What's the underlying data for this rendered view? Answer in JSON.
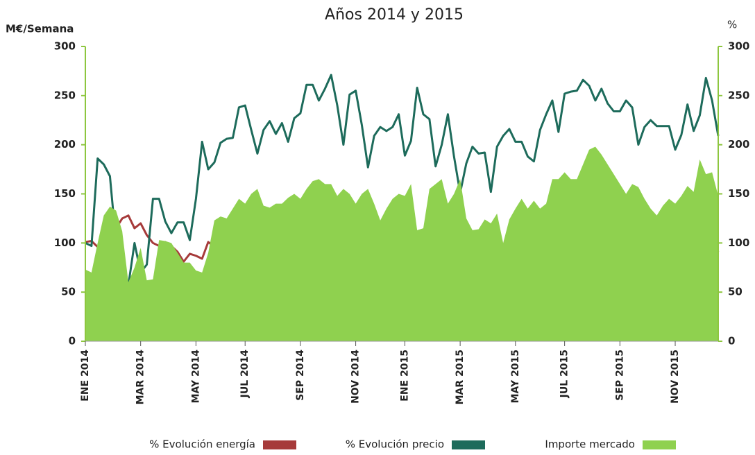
{
  "chart_data": {
    "type": "line",
    "title": "Años 2014 y 2015",
    "ylabel": "M€/Semana",
    "y2label": "%",
    "categories": [
      "ENE 2014",
      null,
      null,
      null,
      null,
      null,
      null,
      null,
      null,
      "MAR 2014",
      null,
      null,
      null,
      null,
      null,
      null,
      null,
      null,
      "MAY 2014",
      null,
      null,
      null,
      null,
      null,
      null,
      null,
      "JUL 2014",
      null,
      null,
      null,
      null,
      null,
      null,
      null,
      null,
      "SEP 2014",
      null,
      null,
      null,
      null,
      null,
      null,
      null,
      null,
      "NOV 2014",
      null,
      null,
      null,
      null,
      null,
      null,
      null,
      "ENE 2015",
      null,
      null,
      null,
      null,
      null,
      null,
      null,
      null,
      "MAR 2015",
      null,
      null,
      null,
      null,
      null,
      null,
      null,
      null,
      "MAY 2015",
      null,
      null,
      null,
      null,
      null,
      null,
      null,
      "JUL 2015",
      null,
      null,
      null,
      null,
      null,
      null,
      null,
      null,
      "SEP 2015",
      null,
      null,
      null,
      null,
      null,
      null,
      null,
      null,
      "NOV 2015",
      null,
      null,
      null,
      null,
      null,
      null,
      null
    ],
    "series": [
      {
        "name": "% Evolución energía",
        "color": "#a63a3a",
        "axis": "y2",
        "values": [
          101,
          102,
          96,
          107,
          108,
          115,
          125,
          128,
          115,
          120,
          108,
          100,
          97,
          101,
          97,
          91,
          81,
          89,
          87,
          84,
          101,
          96,
          95,
          98,
          95,
          89,
          91,
          89,
          100,
          91,
          88,
          97,
          94,
          98,
          96,
          99,
          88,
          84,
          91,
          79,
          79,
          86,
          95,
          84,
          85,
          92,
          95,
          89,
          93,
          98,
          95,
          96,
          82,
          80,
          86,
          97,
          102,
          105,
          103,
          95,
          94,
          104,
          88,
          87,
          86,
          92,
          85,
          88,
          91,
          93,
          92,
          99,
          102,
          107,
          107,
          100,
          98,
          107,
          92,
          99,
          107,
          104,
          102,
          102,
          93,
          92,
          89,
          95,
          90,
          87,
          94,
          82,
          86,
          94,
          89,
          91,
          97,
          98,
          92,
          97,
          104,
          95,
          105,
          91
        ]
      },
      {
        "name": "% Evolución precio",
        "color": "#1d6b5b",
        "axis": "y2",
        "values": [
          100,
          97,
          186,
          180,
          168,
          100,
          46,
          57,
          100,
          70,
          78,
          145,
          145,
          122,
          110,
          121,
          121,
          103,
          145,
          203,
          175,
          182,
          202,
          206,
          207,
          238,
          240,
          215,
          191,
          215,
          224,
          211,
          222,
          203,
          227,
          232,
          261,
          261,
          245,
          257,
          271,
          240,
          200,
          251,
          255,
          220,
          177,
          209,
          218,
          214,
          218,
          231,
          189,
          204,
          258,
          231,
          226,
          178,
          200,
          231,
          188,
          151,
          181,
          198,
          191,
          192,
          152,
          198,
          209,
          216,
          203,
          203,
          188,
          183,
          215,
          231,
          245,
          213,
          252,
          254,
          255,
          266,
          260,
          245,
          257,
          242,
          234,
          234,
          245,
          238,
          200,
          218,
          225,
          219,
          219,
          219,
          195,
          210,
          241,
          214,
          230,
          268,
          245,
          209
        ]
      },
      {
        "name": "Importe mercado",
        "color": "#8fd14f",
        "area": true,
        "values": [
          73,
          70,
          100,
          128,
          137,
          133,
          112,
          60,
          75,
          95,
          62,
          63,
          103,
          102,
          100,
          90,
          80,
          80,
          72,
          70,
          90,
          123,
          127,
          125,
          135,
          145,
          140,
          150,
          155,
          138,
          136,
          140,
          140,
          146,
          150,
          145,
          155,
          163,
          165,
          160,
          160,
          148,
          155,
          150,
          140,
          150,
          155,
          140,
          123,
          135,
          145,
          150,
          148,
          160,
          113,
          115,
          155,
          160,
          165,
          140,
          150,
          165,
          125,
          113,
          114,
          124,
          120,
          130,
          100,
          124,
          135,
          145,
          135,
          143,
          135,
          140,
          165,
          165,
          172,
          165,
          165,
          180,
          195,
          198,
          190,
          180,
          170,
          160,
          150,
          160,
          157,
          145,
          135,
          128,
          138,
          145,
          140,
          148,
          158,
          152,
          185,
          170,
          172,
          148
        ]
      }
    ],
    "ylim": [
      0,
      300
    ],
    "yticks": [
      0,
      50,
      100,
      150,
      200,
      250,
      300
    ],
    "y2lim": [
      0,
      300
    ],
    "y2ticks": [
      0,
      50,
      100,
      150,
      200,
      250,
      300
    ],
    "axis_color": "#8dc63f",
    "legend": "bottom"
  }
}
